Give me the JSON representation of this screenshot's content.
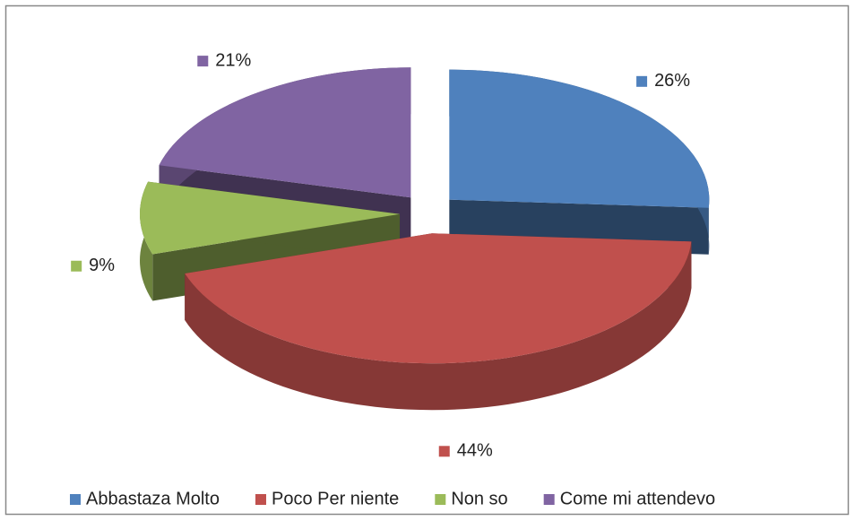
{
  "chart_data": {
    "type": "pie",
    "categories": [
      "Abbastaza Molto",
      "Poco Per niente",
      "Non so",
      "Come mi attendevo"
    ],
    "values": [
      26,
      44,
      9,
      21
    ],
    "value_labels": [
      "26%",
      "44%",
      "9%",
      "21%"
    ],
    "colors": [
      "#4f81bd",
      "#c0504d",
      "#9bbb59",
      "#8064a2"
    ],
    "legend": "bottom"
  }
}
